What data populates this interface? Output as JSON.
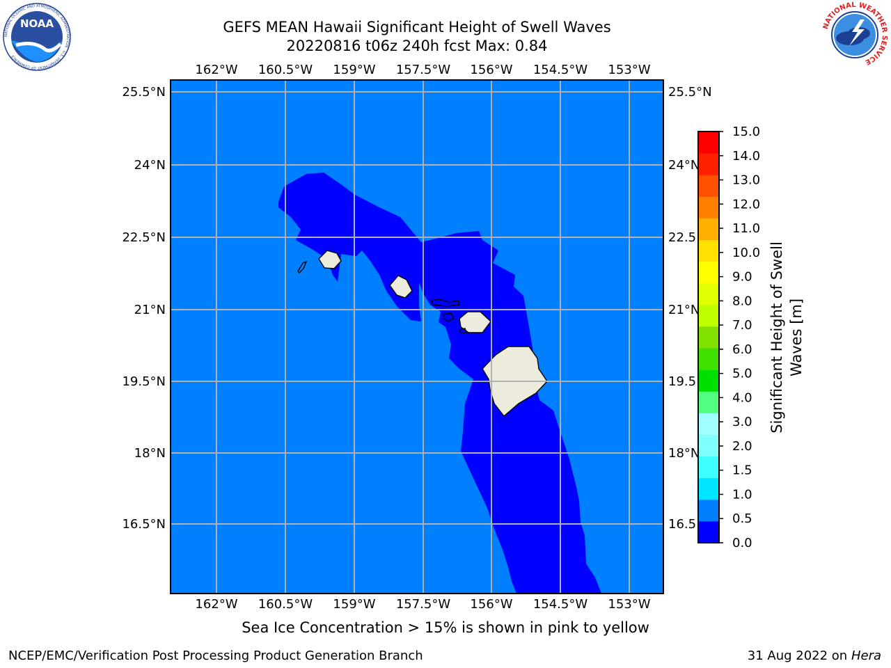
{
  "header": {
    "title_line1": "GEFS MEAN Hawaii Significant Height of Swell Waves",
    "title_line2": "20220816 t06z 240h fcst   Max: 0.84"
  },
  "map": {
    "lon_ticks": [
      "162°W",
      "160.5°W",
      "159°W",
      "157.5°W",
      "156°W",
      "154.5°W",
      "153°W"
    ],
    "lat_ticks": [
      "25.5°N",
      "24°N",
      "22.5°N",
      "21°N",
      "19.5°N",
      "18°N",
      "16.5°N"
    ],
    "colors": {
      "ocean_low": "#0000ff",
      "ocean_mid": "#007fff",
      "land": "#ecebdc",
      "grid": "#b0b0b0"
    }
  },
  "colorbar": {
    "label_line1": "Significant Height of Swell",
    "label_line2": "Waves [m]",
    "ticks": [
      "0.0",
      "0.5",
      "1.0",
      "1.5",
      "2.0",
      "3.0",
      "4.0",
      "5.0",
      "6.0",
      "7.0",
      "8.0",
      "9.0",
      "10.0",
      "11.0",
      "12.0",
      "13.0",
      "14.0",
      "15.0"
    ],
    "colors": [
      "#0000ff",
      "#007fff",
      "#00e5ff",
      "#40ffff",
      "#80ffff",
      "#a0ffff",
      "#50ff80",
      "#00e000",
      "#40e000",
      "#80e000",
      "#c0ff00",
      "#e0ff00",
      "#ffff00",
      "#ffe000",
      "#ffb000",
      "#ff8000",
      "#ff5000",
      "#ff2000",
      "#ff0000"
    ]
  },
  "logos": {
    "noaa_text": "NOAA",
    "noaa_ring": "NATIONAL OCEANIC AND ATMOSPHERIC ADMINISTRATION · U.S. DEPARTMENT OF COMMERCE",
    "nws_ring": "NATIONAL WEATHER SERVICE"
  },
  "caption": "Sea Ice Concentration > 15% is shown in pink to yellow",
  "footer": {
    "left": "NCEP/EMC/Verification Post Processing Product Generation Branch",
    "right_date": "31 Aug 2022 on",
    "right_host": "Hera"
  }
}
